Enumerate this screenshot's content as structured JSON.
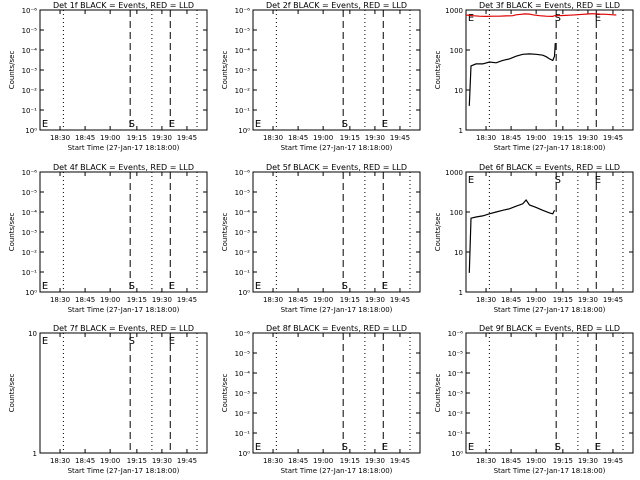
{
  "chart_data": [
    {
      "type": "line",
      "title": "Det 1f BLACK = Events, RED = LLD",
      "xlabel": "Start Time (27-Jan-17 18:18:00)",
      "ylabel": "Counts/sec",
      "xticks": [
        "18:30",
        "18:45",
        "19:00",
        "19:15",
        "19:30",
        "19:45"
      ],
      "yscale": "log",
      "yticks": [
        "10⁰",
        "10⁻¹",
        "10⁻²",
        "10⁻³",
        "10⁻⁴",
        "10⁻⁵",
        "10⁻⁶"
      ],
      "markers": [
        "E",
        "S",
        "E"
      ],
      "series": []
    },
    {
      "type": "line",
      "title": "Det 2f BLACK = Events, RED = LLD",
      "xlabel": "Start Time (27-Jan-17 18:18:00)",
      "ylabel": "Counts/sec",
      "xticks": [
        "18:30",
        "18:45",
        "19:00",
        "19:15",
        "19:30",
        "19:45"
      ],
      "yscale": "log",
      "yticks": [
        "10⁰",
        "10⁻¹",
        "10⁻²",
        "10⁻³",
        "10⁻⁴",
        "10⁻⁵",
        "10⁻⁶"
      ],
      "markers": [
        "E",
        "S",
        "E"
      ],
      "series": []
    },
    {
      "type": "line",
      "title": "Det 3f BLACK = Events, RED = LLD",
      "xlabel": "Start Time (27-Jan-17 18:18:00)",
      "ylabel": "Counts/sec",
      "xticks": [
        "18:30",
        "18:45",
        "19:00",
        "19:15",
        "19:30",
        "19:45"
      ],
      "yscale": "log",
      "yticks": [
        "1",
        "10",
        "100",
        "1000"
      ],
      "markers": [
        "E",
        "S",
        "E"
      ],
      "series": [
        {
          "color": "#000000",
          "points": [
            [
              2,
              4
            ],
            [
              3,
              40
            ],
            [
              6,
              45
            ],
            [
              10,
              45
            ],
            [
              14,
              50
            ],
            [
              18,
              48
            ],
            [
              22,
              55
            ],
            [
              26,
              60
            ],
            [
              30,
              70
            ],
            [
              34,
              78
            ],
            [
              38,
              80
            ],
            [
              42,
              78
            ],
            [
              46,
              74
            ],
            [
              48,
              68
            ],
            [
              50,
              60
            ],
            [
              52,
              55
            ],
            [
              53,
              70
            ],
            [
              53.5,
              150
            ]
          ]
        },
        {
          "color": "#dd0000",
          "points": [
            [
              0,
              750
            ],
            [
              4,
              720
            ],
            [
              8,
              700
            ],
            [
              12,
              690
            ],
            [
              16,
              700
            ],
            [
              20,
              700
            ],
            [
              24,
              710
            ],
            [
              28,
              720
            ],
            [
              30,
              760
            ],
            [
              33,
              780
            ],
            [
              35,
              800
            ],
            [
              38,
              790
            ],
            [
              40,
              760
            ],
            [
              44,
              720
            ],
            [
              48,
              700
            ],
            [
              52,
              690
            ],
            [
              53,
              720
            ],
            [
              54,
              720
            ],
            [
              58,
              730
            ],
            [
              62,
              740
            ],
            [
              66,
              760
            ],
            [
              70,
              780
            ],
            [
              74,
              800
            ],
            [
              76,
              810
            ],
            [
              80,
              790
            ],
            [
              84,
              780
            ],
            [
              88,
              760
            ],
            [
              90,
              750
            ]
          ]
        }
      ]
    },
    {
      "type": "line",
      "title": "Det 4f BLACK = Events, RED = LLD",
      "xlabel": "Start Time (27-Jan-17 18:18:00)",
      "ylabel": "Counts/sec",
      "xticks": [
        "18:30",
        "18:45",
        "19:00",
        "19:15",
        "19:30",
        "19:45"
      ],
      "yscale": "log",
      "yticks": [
        "10⁰",
        "10⁻¹",
        "10⁻²",
        "10⁻³",
        "10⁻⁴",
        "10⁻⁵",
        "10⁻⁶"
      ],
      "markers": [
        "E",
        "S",
        "E"
      ],
      "series": []
    },
    {
      "type": "line",
      "title": "Det 5f BLACK = Events, RED = LLD",
      "xlabel": "Start Time (27-Jan-17 18:18:00)",
      "ylabel": "Counts/sec",
      "xticks": [
        "18:30",
        "18:45",
        "19:00",
        "19:15",
        "19:30",
        "19:45"
      ],
      "yscale": "log",
      "yticks": [
        "10⁰",
        "10⁻¹",
        "10⁻²",
        "10⁻³",
        "10⁻⁴",
        "10⁻⁵",
        "10⁻⁶"
      ],
      "markers": [
        "E",
        "S",
        "E"
      ],
      "series": []
    },
    {
      "type": "line",
      "title": "Det 6f BLACK = Events, RED = LLD",
      "xlabel": "Start Time (27-Jan-17 18:18:00)",
      "ylabel": "Counts/sec",
      "xticks": [
        "18:30",
        "18:45",
        "19:00",
        "19:15",
        "19:30",
        "19:45"
      ],
      "yscale": "log",
      "yticks": [
        "1",
        "10",
        "100",
        "1000"
      ],
      "markers": [
        "E",
        "S",
        "E"
      ],
      "series": [
        {
          "color": "#000000",
          "points": [
            [
              2,
              3
            ],
            [
              3,
              70
            ],
            [
              6,
              75
            ],
            [
              10,
              80
            ],
            [
              14,
              90
            ],
            [
              18,
              100
            ],
            [
              22,
              110
            ],
            [
              26,
              120
            ],
            [
              30,
              140
            ],
            [
              34,
              160
            ],
            [
              36,
              200
            ],
            [
              38,
              150
            ],
            [
              42,
              130
            ],
            [
              46,
              110
            ],
            [
              50,
              95
            ],
            [
              52,
              90
            ],
            [
              53,
              110
            ]
          ]
        }
      ]
    },
    {
      "type": "line",
      "title": "Det 7f BLACK = Events, RED = LLD",
      "xlabel": "Start Time (27-Jan-17 18:18:00)",
      "ylabel": "Counts/sec",
      "xticks": [
        "18:30",
        "18:45",
        "19:00",
        "19:15",
        "19:30",
        "19:45"
      ],
      "yscale": "log",
      "yticks": [
        "1",
        "10"
      ],
      "markers": [
        "E",
        "S",
        "E"
      ],
      "series": []
    },
    {
      "type": "line",
      "title": "Det 8f BLACK = Events, RED = LLD",
      "xlabel": "Start Time (27-Jan-17 18:18:00)",
      "ylabel": "Counts/sec",
      "xticks": [
        "18:30",
        "18:45",
        "19:00",
        "19:15",
        "19:30",
        "19:45"
      ],
      "yscale": "log",
      "yticks": [
        "10⁰",
        "10⁻¹",
        "10⁻²",
        "10⁻³",
        "10⁻⁴",
        "10⁻⁵",
        "10⁻⁶"
      ],
      "markers": [
        "E",
        "S",
        "E"
      ],
      "series": []
    },
    {
      "type": "line",
      "title": "Det 9f BLACK = Events, RED = LLD",
      "xlabel": "Start Time (27-Jan-17 18:18:00)",
      "ylabel": "Counts/sec",
      "xticks": [
        "18:30",
        "18:45",
        "19:00",
        "19:15",
        "19:30",
        "19:45"
      ],
      "yscale": "log",
      "yticks": [
        "10⁰",
        "10⁻¹",
        "10⁻²",
        "10⁻³",
        "10⁻⁴",
        "10⁻⁵",
        "10⁻⁶"
      ],
      "markers": [
        "E",
        "S",
        "E"
      ],
      "series": []
    }
  ]
}
